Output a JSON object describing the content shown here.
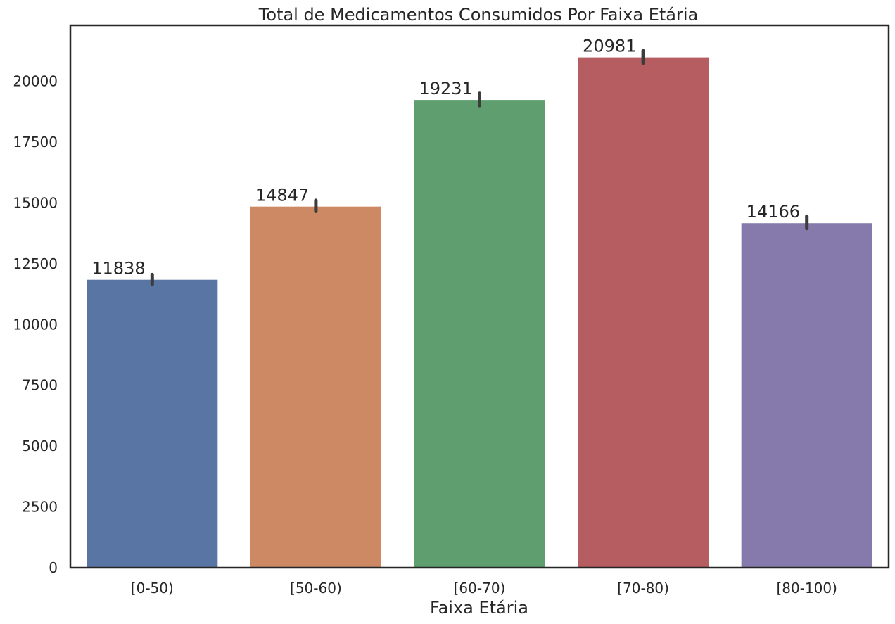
{
  "chart_data": {
    "type": "bar",
    "title": "Total de Medicamentos Consumidos Por Faixa Etária",
    "xlabel": "Faixa Etária",
    "ylabel": "",
    "categories": [
      "[0-50)",
      "[50-60)",
      "[60-70)",
      "[70-80)",
      "[80-100)"
    ],
    "values": [
      11838,
      14847,
      19231,
      20981,
      14166
    ],
    "value_labels": [
      "11838",
      "14847",
      "19231",
      "20981",
      "14166"
    ],
    "error_bars": [
      [
        11650,
        12050
      ],
      [
        14650,
        15100
      ],
      [
        19000,
        19500
      ],
      [
        20750,
        21250
      ],
      [
        13950,
        14450
      ]
    ],
    "colors": [
      "#5875a4",
      "#cc8963",
      "#5f9e6e",
      "#b55d60",
      "#857aab"
    ],
    "yticks": [
      0,
      2500,
      5000,
      7500,
      10000,
      12500,
      15000,
      17500,
      20000
    ],
    "ytick_labels": [
      "0",
      "2500",
      "5000",
      "7500",
      "10000",
      "12500",
      "15000",
      "17500",
      "20000"
    ],
    "ylim": [
      0,
      22300
    ],
    "grid": false,
    "legend": "none"
  }
}
